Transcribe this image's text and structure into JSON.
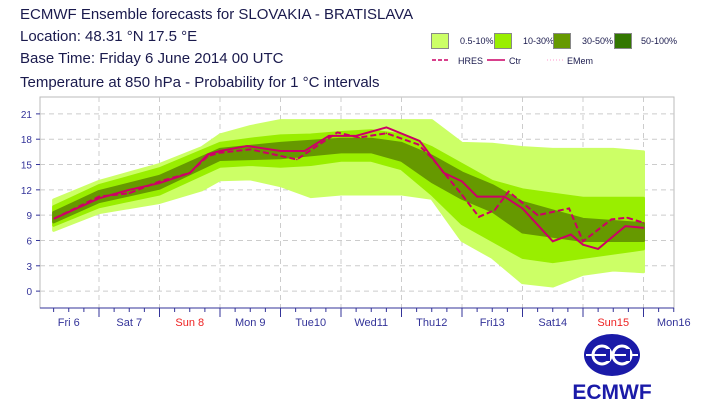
{
  "header": {
    "title": "ECMWF Ensemble forecasts for SLOVAKIA - BRATISLAVA",
    "location": "Location:  48.31 °N 17.5 °E",
    "base_time": "Base Time: Friday  6 June 2014 00 UTC",
    "subtitle": "Temperature at 850 hPa - Probability for 1 °C intervals"
  },
  "legend": {
    "bins": [
      {
        "label": "0.5-10%",
        "color": "#ccff66"
      },
      {
        "label": "10-30%",
        "color": "#99ee00"
      },
      {
        "label": "30-50%",
        "color": "#669900"
      },
      {
        "label": "50-100%",
        "color": "#337700"
      }
    ],
    "lines": [
      {
        "label": "HRES",
        "style": "dashed",
        "color": "#cc0066"
      },
      {
        "label": "Ctr",
        "style": "solid",
        "color": "#cc0066"
      },
      {
        "label": "EMem",
        "style": "dotted",
        "color": "#ff99cc"
      }
    ]
  },
  "logo": {
    "text": "ECMWF",
    "color": "#1a1aa8"
  },
  "chart_data": {
    "type": "area",
    "title": "Temperature at 850 hPa - Probability for 1 °C intervals",
    "xlabel": "",
    "ylabel": "",
    "xlim": [
      0,
      10.5
    ],
    "ylim": [
      -2,
      23
    ],
    "grid": true,
    "yticks": [
      0,
      3,
      6,
      9,
      12,
      15,
      18,
      21
    ],
    "xticks": [
      {
        "label": "Fri 6",
        "sunday": false
      },
      {
        "label": "Sat 7",
        "sunday": false
      },
      {
        "label": "Sun 8",
        "sunday": true
      },
      {
        "label": "Mon 9",
        "sunday": false
      },
      {
        "label": "Tue10",
        "sunday": false
      },
      {
        "label": "Wed11",
        "sunday": false
      },
      {
        "label": "Thu12",
        "sunday": false
      },
      {
        "label": "Fri13",
        "sunday": false
      },
      {
        "label": "Sat14",
        "sunday": false
      },
      {
        "label": "Sun15",
        "sunday": true
      },
      {
        "label": "Mon16",
        "sunday": false
      }
    ],
    "bands": [
      {
        "name": "0.5-10%",
        "color": "#ccff66",
        "t": [
          0.25,
          1,
          2,
          2.7,
          3,
          3.5,
          4,
          4.5,
          5,
          5.5,
          6,
          6.5,
          7,
          7.5,
          8,
          8.5,
          9,
          9.5,
          10
        ],
        "low": [
          7.2,
          9.3,
          10.5,
          12,
          13.2,
          13.3,
          12.5,
          11.2,
          11.5,
          11.5,
          11.5,
          11,
          6,
          4,
          1,
          0.6,
          2,
          2.5,
          2.3
        ],
        "high": [
          10.8,
          13,
          15,
          17,
          18.5,
          19.5,
          20.2,
          20.2,
          20.2,
          20.2,
          20.2,
          20.2,
          17.5,
          17.4,
          17,
          16.8,
          16.8,
          16.8,
          16.5
        ]
      },
      {
        "name": "10-30%",
        "color": "#99ee00",
        "t": [
          0.25,
          1,
          2,
          3,
          3.5,
          4,
          4.5,
          5,
          5.5,
          6,
          6.5,
          7,
          7.5,
          8,
          8.5,
          9,
          9.5,
          10
        ],
        "low": [
          7.8,
          10,
          11.5,
          14.8,
          15,
          14.8,
          15,
          15.5,
          15.5,
          14.5,
          11.5,
          8,
          6,
          4,
          3.5,
          4,
          4.5,
          5
        ],
        "high": [
          10,
          12.5,
          14.5,
          17.5,
          18,
          18.4,
          18.5,
          18.8,
          19,
          18.5,
          17,
          15,
          13,
          12,
          11.5,
          11,
          11,
          11
        ]
      },
      {
        "name": "30-50%",
        "color": "#669900",
        "t": [
          0.25,
          1,
          2,
          3,
          4,
          5,
          5.5,
          6,
          6.5,
          7,
          7.5,
          8,
          8.5,
          9,
          10
        ],
        "low": [
          8.2,
          10.6,
          12.2,
          15.6,
          15.8,
          16.5,
          16.5,
          15.5,
          13,
          11,
          9.5,
          7,
          6.5,
          6,
          6
        ],
        "high": [
          9.3,
          11.8,
          13.6,
          16.8,
          17.5,
          18,
          18,
          17.5,
          16,
          14,
          12.5,
          10.5,
          9.5,
          8.5,
          8
        ]
      }
    ],
    "series": [
      {
        "name": "Ctr",
        "style": "solid",
        "color": "#cc0066",
        "t": [
          0.26,
          1.0,
          1.5,
          2.0,
          2.5,
          2.8,
          3.0,
          3.45,
          4.0,
          4.4,
          4.8,
          5.25,
          5.75,
          6.3,
          6.7,
          7.0,
          7.25,
          7.7,
          8.0,
          8.5,
          8.8,
          9.0,
          9.25,
          9.7,
          10.0
        ],
        "values": [
          8.6,
          11.0,
          12.0,
          12.8,
          14.0,
          16.2,
          16.6,
          17.2,
          16.6,
          16.6,
          18.4,
          18.4,
          19.4,
          17.8,
          14.0,
          13.0,
          11.2,
          11.2,
          9.8,
          5.9,
          6.7,
          5.5,
          5.0,
          7.7,
          7.5
        ]
      },
      {
        "name": "HRES",
        "style": "dashed",
        "color": "#cc0066",
        "t": [
          0.26,
          1.0,
          1.5,
          2.0,
          2.5,
          2.8,
          3.0,
          3.5,
          4.27,
          4.94,
          5.3,
          5.75,
          6.27,
          6.5,
          7.0,
          7.28,
          7.54,
          7.77,
          8.25,
          8.77,
          9.0,
          9.47,
          9.73,
          10.0
        ],
        "values": [
          8.6,
          11.2,
          11.6,
          13.0,
          14.0,
          16.0,
          16.4,
          16.8,
          15.6,
          18.8,
          18.2,
          18.7,
          17.4,
          15.8,
          11.4,
          8.8,
          9.6,
          11.8,
          9.0,
          9.8,
          5.9,
          8.5,
          8.7,
          8.1
        ]
      }
    ]
  }
}
